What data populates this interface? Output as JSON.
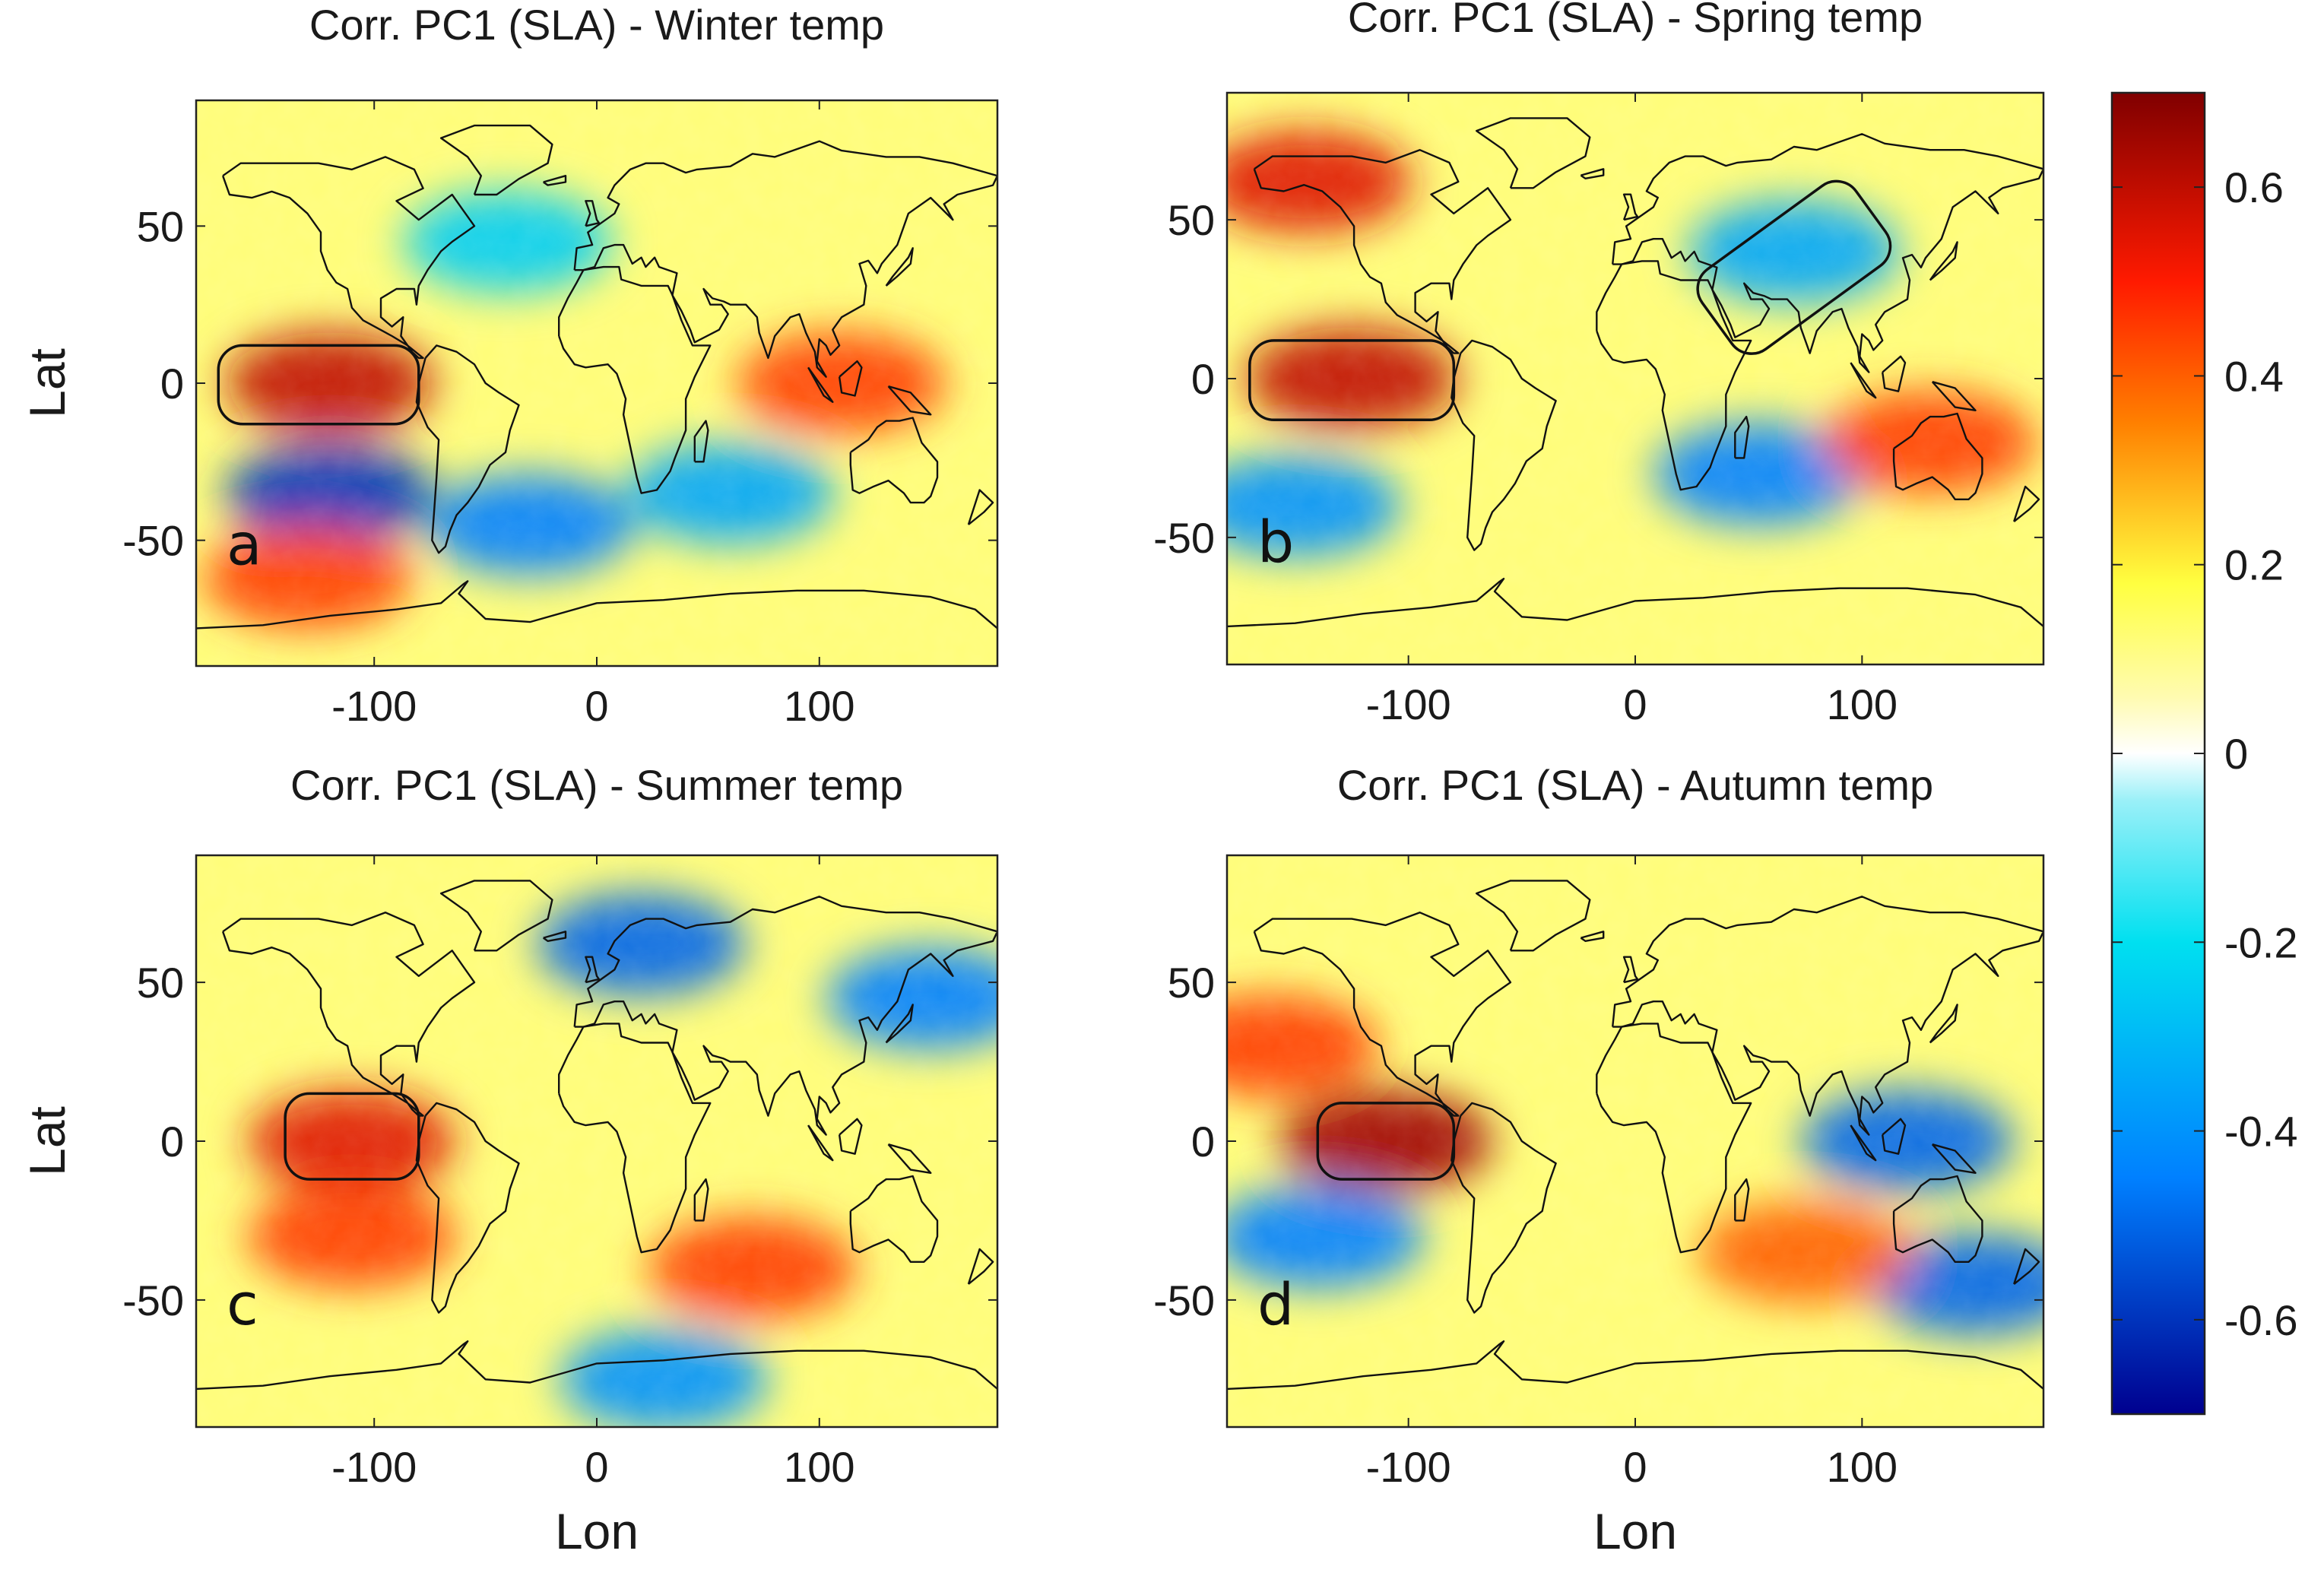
{
  "chart_data": [
    {
      "type": "heatmap",
      "panel": "a",
      "title": "Corr. PC1 (SLA) - Winter temp",
      "xlabel": "",
      "ylabel": "Lat",
      "xlim": [
        -180,
        180
      ],
      "ylim": [
        -90,
        90
      ],
      "xticks": [
        -100,
        0,
        100
      ],
      "yticks": [
        50,
        0,
        -50
      ],
      "highlight_boxes": [
        {
          "region": "Nino-3.4 equatorial Pacific",
          "lon": [
            -170,
            -80
          ],
          "lat": [
            -13,
            12
          ]
        }
      ],
      "features": [
        {
          "region": "Equatorial eastern Pacific",
          "lon": -120,
          "lat": 0,
          "corr": 0.6
        },
        {
          "region": "South Pacific band",
          "lon": -120,
          "lat": -35,
          "corr": -0.6
        },
        {
          "region": "Southern Ocean Pacific",
          "lon": -130,
          "lat": -62,
          "corr": 0.45
        },
        {
          "region": "South Atlantic",
          "lon": -30,
          "lat": -45,
          "corr": -0.45
        },
        {
          "region": "Indian Ocean south",
          "lon": 60,
          "lat": -35,
          "corr": -0.35
        },
        {
          "region": "North Atlantic",
          "lon": -40,
          "lat": 45,
          "corr": -0.25
        },
        {
          "region": "Maritime continent",
          "lon": 110,
          "lat": 0,
          "corr": 0.45
        }
      ]
    },
    {
      "type": "heatmap",
      "panel": "b",
      "title": "Corr. PC1 (SLA) - Spring temp",
      "xlabel": "",
      "ylabel": "",
      "xlim": [
        -180,
        180
      ],
      "ylim": [
        -90,
        90
      ],
      "xticks": [
        -100,
        0,
        100
      ],
      "yticks": [
        50,
        0,
        -50
      ],
      "highlight_boxes": [
        {
          "region": "Equatorial Pacific",
          "lon": [
            -170,
            -80
          ],
          "lat": [
            -13,
            12
          ]
        },
        {
          "region": "South Asia (tilted)",
          "lon": [
            30,
            110
          ],
          "lat": [
            10,
            60
          ]
        }
      ],
      "features": [
        {
          "region": "Alaska / NE Pacific",
          "lon": -145,
          "lat": 62,
          "corr": 0.55
        },
        {
          "region": "Equatorial eastern Pacific",
          "lon": -125,
          "lat": 0,
          "corr": 0.6
        },
        {
          "region": "Central Asia",
          "lon": 70,
          "lat": 40,
          "corr": -0.35
        },
        {
          "region": "Indian Ocean south",
          "lon": 55,
          "lat": -30,
          "corr": -0.45
        },
        {
          "region": "Australia",
          "lon": 130,
          "lat": -20,
          "corr": 0.45
        },
        {
          "region": "South Pacific",
          "lon": -150,
          "lat": -40,
          "corr": -0.4
        }
      ]
    },
    {
      "type": "heatmap",
      "panel": "c",
      "title": "Corr. PC1 (SLA) - Summer temp",
      "xlabel": "Lon",
      "ylabel": "Lat",
      "xlim": [
        -180,
        180
      ],
      "ylim": [
        -90,
        90
      ],
      "xticks": [
        -100,
        0,
        100
      ],
      "yticks": [
        50,
        0,
        -50
      ],
      "highlight_boxes": [
        {
          "region": "Equatorial Pacific",
          "lon": [
            -140,
            -80
          ],
          "lat": [
            -12,
            15
          ]
        }
      ],
      "features": [
        {
          "region": "Equatorial eastern Pacific",
          "lon": -110,
          "lat": 0,
          "corr": 0.55
        },
        {
          "region": "SE Pacific",
          "lon": -110,
          "lat": -30,
          "corr": 0.45
        },
        {
          "region": "South Indian Ocean",
          "lon": 70,
          "lat": -40,
          "corr": 0.45
        },
        {
          "region": "Antarctic margin",
          "lon": 30,
          "lat": -75,
          "corr": -0.4
        },
        {
          "region": "NW Pacific",
          "lon": 150,
          "lat": 45,
          "corr": -0.45
        },
        {
          "region": "Scandinavia",
          "lon": 20,
          "lat": 62,
          "corr": -0.5
        }
      ]
    },
    {
      "type": "heatmap",
      "panel": "d",
      "title": "Corr. PC1 (SLA) - Autumn temp",
      "xlabel": "Lon",
      "ylabel": "",
      "xlim": [
        -180,
        180
      ],
      "ylim": [
        -90,
        90
      ],
      "xticks": [
        -100,
        0,
        100
      ],
      "yticks": [
        50,
        0,
        -50
      ],
      "highlight_boxes": [
        {
          "region": "Equatorial Pacific",
          "lon": [
            -140,
            -80
          ],
          "lat": [
            -12,
            12
          ]
        }
      ],
      "features": [
        {
          "region": "Equatorial eastern Pacific",
          "lon": -110,
          "lat": 0,
          "corr": 0.65
        },
        {
          "region": "South Pacific band",
          "lon": -140,
          "lat": -30,
          "corr": -0.45
        },
        {
          "region": "South of Australia",
          "lon": 150,
          "lat": -45,
          "corr": -0.5
        },
        {
          "region": "Maritime continent",
          "lon": 120,
          "lat": 0,
          "corr": -0.5
        },
        {
          "region": "North Pacific",
          "lon": -160,
          "lat": 30,
          "corr": 0.45
        },
        {
          "region": "South Indian Ocean",
          "lon": 75,
          "lat": -35,
          "corr": 0.4
        }
      ]
    }
  ],
  "colorbar": {
    "range": [
      -0.7,
      0.7
    ],
    "tick_labels": [
      "0.6",
      "0.4",
      "0.2",
      "0",
      "-0.2",
      "-0.4",
      "-0.6"
    ],
    "tick_values": [
      0.6,
      0.4,
      0.2,
      0,
      -0.2,
      -0.4,
      -0.6
    ],
    "colors": {
      "min": "#00008f",
      "neg_mid": "#0080ff",
      "neg_low": "#00e0f0",
      "zero": "#ffffff",
      "pos_low": "#ffff40",
      "pos_mid": "#ff8000",
      "pos_high": "#ff1a00",
      "max": "#800000"
    }
  },
  "colors": {
    "coast": "#111111",
    "frame": "#222222"
  }
}
